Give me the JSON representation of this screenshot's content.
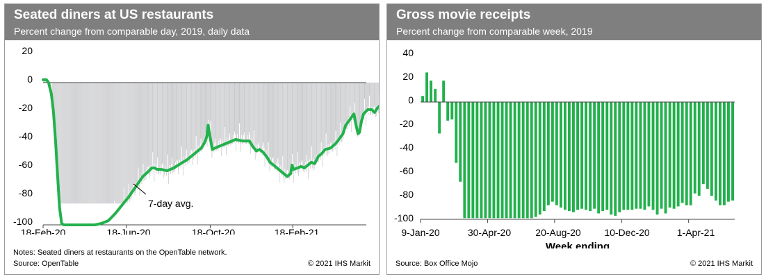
{
  "chart_data": [
    {
      "type": "line",
      "title": "Seated diners at US restaurants",
      "subtitle": "Percent change from comparable day, 2019, daily data",
      "xlabel": "",
      "ylabel": "",
      "ylim": [
        -100,
        20
      ],
      "yticks": [
        "20",
        "0",
        "-20",
        "-40",
        "-60",
        "-80",
        "-100"
      ],
      "xticks": [
        "18-Feb-20",
        "18-Jun-20",
        "18-Oct-20",
        "18-Feb-21"
      ],
      "x_day_range": [
        0,
        470
      ],
      "series": [
        {
          "name": "7-day avg.",
          "color": "#22b14c",
          "points": [
            [
              0,
              2
            ],
            [
              5,
              2
            ],
            [
              8,
              0
            ],
            [
              12,
              -8
            ],
            [
              15,
              -20
            ],
            [
              18,
              -40
            ],
            [
              21,
              -65
            ],
            [
              24,
              -88
            ],
            [
              27,
              -99
            ],
            [
              30,
              -100
            ],
            [
              75,
              -100
            ],
            [
              85,
              -99
            ],
            [
              95,
              -97
            ],
            [
              105,
              -92
            ],
            [
              115,
              -86
            ],
            [
              125,
              -80
            ],
            [
              135,
              -73
            ],
            [
              145,
              -66
            ],
            [
              152,
              -63
            ],
            [
              158,
              -60
            ],
            [
              162,
              -60
            ],
            [
              166,
              -61
            ],
            [
              172,
              -61
            ],
            [
              180,
              -62
            ],
            [
              190,
              -60
            ],
            [
              200,
              -57
            ],
            [
              210,
              -54
            ],
            [
              220,
              -50
            ],
            [
              230,
              -46
            ],
            [
              235,
              -42
            ],
            [
              238,
              -38
            ],
            [
              240,
              -30
            ],
            [
              242,
              -36
            ],
            [
              246,
              -47
            ],
            [
              250,
              -46
            ],
            [
              260,
              -44
            ],
            [
              270,
              -42
            ],
            [
              280,
              -40
            ],
            [
              290,
              -41
            ],
            [
              300,
              -41
            ],
            [
              305,
              -45
            ],
            [
              310,
              -48
            ],
            [
              315,
              -47
            ],
            [
              320,
              -49
            ],
            [
              325,
              -52
            ],
            [
              330,
              -56
            ],
            [
              340,
              -60
            ],
            [
              350,
              -64
            ],
            [
              355,
              -66
            ],
            [
              360,
              -64
            ],
            [
              362,
              -58
            ],
            [
              364,
              -61
            ],
            [
              370,
              -60
            ],
            [
              375,
              -59
            ],
            [
              380,
              -60
            ],
            [
              385,
              -58
            ],
            [
              390,
              -56
            ],
            [
              395,
              -57
            ],
            [
              400,
              -52
            ],
            [
              405,
              -50
            ],
            [
              410,
              -47
            ],
            [
              418,
              -46
            ],
            [
              425,
              -43
            ],
            [
              430,
              -40
            ],
            [
              436,
              -36
            ],
            [
              440,
              -30
            ],
            [
              446,
              -26
            ],
            [
              452,
              -22
            ],
            [
              455,
              -30
            ],
            [
              458,
              -36
            ],
            [
              460,
              -35
            ],
            [
              463,
              -27
            ],
            [
              466,
              -22
            ],
            [
              472,
              -19
            ],
            [
              478,
              -19
            ],
            [
              482,
              -21
            ],
            [
              486,
              -18
            ],
            [
              490,
              -16
            ],
            [
              495,
              -14
            ]
          ]
        }
      ],
      "daily_bar_range": {
        "min": -85,
        "max": 0
      },
      "annotation": "7-day avg.",
      "notes": "Notes: Seated diners at restaurants on the OpenTable network.",
      "source": "Source: OpenTable",
      "copyright": "© 2021 IHS Markit"
    },
    {
      "type": "bar",
      "title": "Gross movie receipts",
      "subtitle": "Percent change from comparable week, 2019",
      "xlabel": "Week ending",
      "ylabel": "",
      "ylim": [
        -100,
        40
      ],
      "yticks": [
        "40",
        "20",
        "0",
        "-20",
        "-40",
        "-60",
        "-80",
        "-100"
      ],
      "xticks": [
        "9-Jan-20",
        "30-Apr-20",
        "20-Aug-20",
        "10-Dec-20",
        "1-Apr-21"
      ],
      "xtick_positions": [
        0,
        16,
        32,
        48,
        64
      ],
      "series": [
        {
          "name": "Gross movie receipts",
          "color": "#22b14c",
          "values": [
            5,
            25,
            18,
            11,
            -27,
            18,
            -16,
            -15,
            -52,
            -68,
            -99,
            -99,
            -99,
            -99,
            -99,
            -99,
            -99,
            -99,
            -99,
            -99,
            -99,
            -99,
            -99,
            -99,
            -99,
            -99,
            -99,
            -98,
            -96,
            -93,
            -88,
            -85,
            -88,
            -90,
            -92,
            -93,
            -94,
            -92,
            -91,
            -92,
            -93,
            -91,
            -95,
            -93,
            -92,
            -96,
            -97,
            -94,
            -92,
            -92,
            -92,
            -91,
            -91,
            -92,
            -89,
            -92,
            -96,
            -91,
            -95,
            -90,
            -91,
            -89,
            -86,
            -88,
            -88,
            -78,
            -80,
            -70,
            -74,
            -80,
            -84,
            -88,
            -88,
            -85,
            -84
          ]
        }
      ],
      "source": "Source: Box Office Mojo",
      "copyright": "© 2021 IHS Markit"
    }
  ]
}
